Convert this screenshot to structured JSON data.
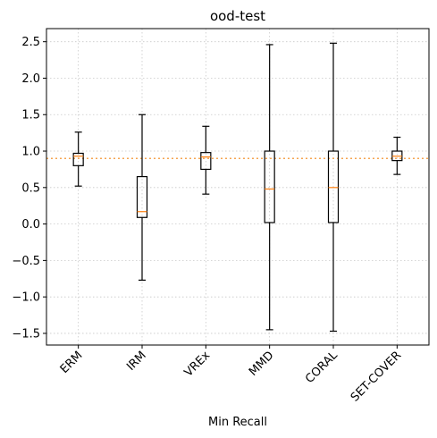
{
  "chart_data": {
    "type": "box",
    "title": "ood-test",
    "xlabel": "Min Recall",
    "ylabel": "",
    "categories": [
      "ERM",
      "IRM",
      "VREx",
      "MMD",
      "CORAL",
      "SET-COVER"
    ],
    "boxes": [
      {
        "whisker_low": 0.52,
        "q1": 0.8,
        "median": 0.93,
        "q3": 0.97,
        "whisker_high": 1.26
      },
      {
        "whisker_low": -0.77,
        "q1": 0.09,
        "median": 0.17,
        "q3": 0.65,
        "whisker_high": 1.5
      },
      {
        "whisker_low": 0.41,
        "q1": 0.75,
        "median": 0.92,
        "q3": 0.98,
        "whisker_high": 1.34
      },
      {
        "whisker_low": -1.45,
        "q1": 0.02,
        "median": 0.48,
        "q3": 1.0,
        "whisker_high": 2.46
      },
      {
        "whisker_low": -1.47,
        "q1": 0.02,
        "median": 0.5,
        "q3": 1.0,
        "whisker_high": 2.48
      },
      {
        "whisker_low": 0.68,
        "q1": 0.87,
        "median": 0.93,
        "q3": 1.0,
        "whisker_high": 1.19
      }
    ],
    "reference_line": {
      "y": 0.9,
      "style": "dotted",
      "color": "#f5a552"
    },
    "ylim": [
      -1.66,
      2.68
    ],
    "yticks": [
      -1.5,
      -1.0,
      -0.5,
      0.0,
      0.5,
      1.0,
      1.5,
      2.0,
      2.5
    ],
    "ytick_labels": [
      "−1.5",
      "−1.0",
      "−0.5",
      "0.0",
      "0.5",
      "1.0",
      "1.5",
      "2.0",
      "2.5"
    ],
    "grid": true,
    "xtick_rotation": 45,
    "colors": {
      "box": "#000000",
      "median": "#ff7f0e",
      "grid": "#c8c8c8"
    }
  }
}
